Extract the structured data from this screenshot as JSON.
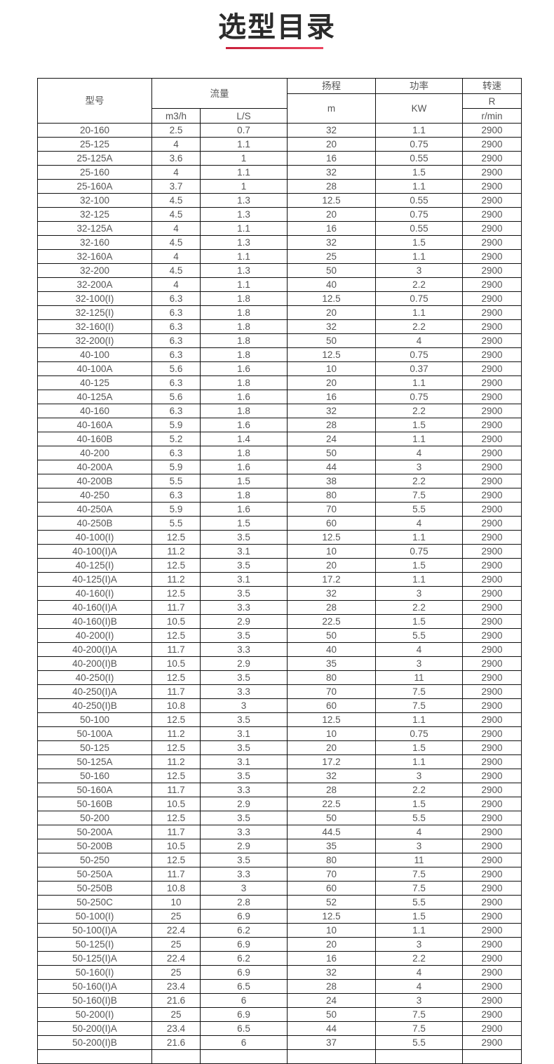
{
  "title": "选型目录",
  "accent_color": "#e0304a",
  "table": {
    "headers": {
      "model": "型号",
      "flow": "流量",
      "head": "扬程",
      "power": "功率",
      "speed": "转速",
      "flow_m3h": "m3/h",
      "flow_ls": "L/S",
      "head_unit": "m",
      "power_unit": "KW",
      "speed_unit_r": "R",
      "speed_unit": "r/min"
    },
    "rows": [
      [
        "20-160",
        "2.5",
        "0.7",
        "32",
        "1.1",
        "2900"
      ],
      [
        "25-125",
        "4",
        "1.1",
        "20",
        "0.75",
        "2900"
      ],
      [
        "25-125A",
        "3.6",
        "1",
        "16",
        "0.55",
        "2900"
      ],
      [
        "25-160",
        "4",
        "1.1",
        "32",
        "1.5",
        "2900"
      ],
      [
        "25-160A",
        "3.7",
        "1",
        "28",
        "1.1",
        "2900"
      ],
      [
        "32-100",
        "4.5",
        "1.3",
        "12.5",
        "0.55",
        "2900"
      ],
      [
        "32-125",
        "4.5",
        "1.3",
        "20",
        "0.75",
        "2900"
      ],
      [
        "32-125A",
        "4",
        "1.1",
        "16",
        "0.55",
        "2900"
      ],
      [
        "32-160",
        "4.5",
        "1.3",
        "32",
        "1.5",
        "2900"
      ],
      [
        "32-160A",
        "4",
        "1.1",
        "25",
        "1.1",
        "2900"
      ],
      [
        "32-200",
        "4.5",
        "1.3",
        "50",
        "3",
        "2900"
      ],
      [
        "32-200A",
        "4",
        "1.1",
        "40",
        "2.2",
        "2900"
      ],
      [
        "32-100(I)",
        "6.3",
        "1.8",
        "12.5",
        "0.75",
        "2900"
      ],
      [
        "32-125(I)",
        "6.3",
        "1.8",
        "20",
        "1.1",
        "2900"
      ],
      [
        "32-160(I)",
        "6.3",
        "1.8",
        "32",
        "2.2",
        "2900"
      ],
      [
        "32-200(I)",
        "6.3",
        "1.8",
        "50",
        "4",
        "2900"
      ],
      [
        "40-100",
        "6.3",
        "1.8",
        "12.5",
        "0.75",
        "2900"
      ],
      [
        "40-100A",
        "5.6",
        "1.6",
        "10",
        "0.37",
        "2900"
      ],
      [
        "40-125",
        "6.3",
        "1.8",
        "20",
        "1.1",
        "2900"
      ],
      [
        "40-125A",
        "5.6",
        "1.6",
        "16",
        "0.75",
        "2900"
      ],
      [
        "40-160",
        "6.3",
        "1.8",
        "32",
        "2.2",
        "2900"
      ],
      [
        "40-160A",
        "5.9",
        "1.6",
        "28",
        "1.5",
        "2900"
      ],
      [
        "40-160B",
        "5.2",
        "1.4",
        "24",
        "1.1",
        "2900"
      ],
      [
        "40-200",
        "6.3",
        "1.8",
        "50",
        "4",
        "2900"
      ],
      [
        "40-200A",
        "5.9",
        "1.6",
        "44",
        "3",
        "2900"
      ],
      [
        "40-200B",
        "5.5",
        "1.5",
        "38",
        "2.2",
        "2900"
      ],
      [
        "40-250",
        "6.3",
        "1.8",
        "80",
        "7.5",
        "2900"
      ],
      [
        "40-250A",
        "5.9",
        "1.6",
        "70",
        "5.5",
        "2900"
      ],
      [
        "40-250B",
        "5.5",
        "1.5",
        "60",
        "4",
        "2900"
      ],
      [
        "40-100(I)",
        "12.5",
        "3.5",
        "12.5",
        "1.1",
        "2900"
      ],
      [
        "40-100(I)A",
        "11.2",
        "3.1",
        "10",
        "0.75",
        "2900"
      ],
      [
        "40-125(I)",
        "12.5",
        "3.5",
        "20",
        "1.5",
        "2900"
      ],
      [
        "40-125(I)A",
        "11.2",
        "3.1",
        "17.2",
        "1.1",
        "2900"
      ],
      [
        "40-160(I)",
        "12.5",
        "3.5",
        "32",
        "3",
        "2900"
      ],
      [
        "40-160(I)A",
        "11.7",
        "3.3",
        "28",
        "2.2",
        "2900"
      ],
      [
        "40-160(I)B",
        "10.5",
        "2.9",
        "22.5",
        "1.5",
        "2900"
      ],
      [
        "40-200(I)",
        "12.5",
        "3.5",
        "50",
        "5.5",
        "2900"
      ],
      [
        "40-200(I)A",
        "11.7",
        "3.3",
        "40",
        "4",
        "2900"
      ],
      [
        "40-200(I)B",
        "10.5",
        "2.9",
        "35",
        "3",
        "2900"
      ],
      [
        "40-250(I)",
        "12.5",
        "3.5",
        "80",
        "11",
        "2900"
      ],
      [
        "40-250(I)A",
        "11.7",
        "3.3",
        "70",
        "7.5",
        "2900"
      ],
      [
        "40-250(I)B",
        "10.8",
        "3",
        "60",
        "7.5",
        "2900"
      ],
      [
        "50-100",
        "12.5",
        "3.5",
        "12.5",
        "1.1",
        "2900"
      ],
      [
        "50-100A",
        "11.2",
        "3.1",
        "10",
        "0.75",
        "2900"
      ],
      [
        "50-125",
        "12.5",
        "3.5",
        "20",
        "1.5",
        "2900"
      ],
      [
        "50-125A",
        "11.2",
        "3.1",
        "17.2",
        "1.1",
        "2900"
      ],
      [
        "50-160",
        "12.5",
        "3.5",
        "32",
        "3",
        "2900"
      ],
      [
        "50-160A",
        "11.7",
        "3.3",
        "28",
        "2.2",
        "2900"
      ],
      [
        "50-160B",
        "10.5",
        "2.9",
        "22.5",
        "1.5",
        "2900"
      ],
      [
        "50-200",
        "12.5",
        "3.5",
        "50",
        "5.5",
        "2900"
      ],
      [
        "50-200A",
        "11.7",
        "3.3",
        "44.5",
        "4",
        "2900"
      ],
      [
        "50-200B",
        "10.5",
        "2.9",
        "35",
        "3",
        "2900"
      ],
      [
        "50-250",
        "12.5",
        "3.5",
        "80",
        "11",
        "2900"
      ],
      [
        "50-250A",
        "11.7",
        "3.3",
        "70",
        "7.5",
        "2900"
      ],
      [
        "50-250B",
        "10.8",
        "3",
        "60",
        "7.5",
        "2900"
      ],
      [
        "50-250C",
        "10",
        "2.8",
        "52",
        "5.5",
        "2900"
      ],
      [
        "50-100(I)",
        "25",
        "6.9",
        "12.5",
        "1.5",
        "2900"
      ],
      [
        "50-100(I)A",
        "22.4",
        "6.2",
        "10",
        "1.1",
        "2900"
      ],
      [
        "50-125(I)",
        "25",
        "6.9",
        "20",
        "3",
        "2900"
      ],
      [
        "50-125(I)A",
        "22.4",
        "6.2",
        "16",
        "2.2",
        "2900"
      ],
      [
        "50-160(I)",
        "25",
        "6.9",
        "32",
        "4",
        "2900"
      ],
      [
        "50-160(I)A",
        "23.4",
        "6.5",
        "28",
        "4",
        "2900"
      ],
      [
        "50-160(I)B",
        "21.6",
        "6",
        "24",
        "3",
        "2900"
      ],
      [
        "50-200(I)",
        "25",
        "6.9",
        "50",
        "7.5",
        "2900"
      ],
      [
        "50-200(I)A",
        "23.4",
        "6.5",
        "44",
        "7.5",
        "2900"
      ],
      [
        "50-200(I)B",
        "21.6",
        "6",
        "37",
        "5.5",
        "2900"
      ]
    ]
  }
}
